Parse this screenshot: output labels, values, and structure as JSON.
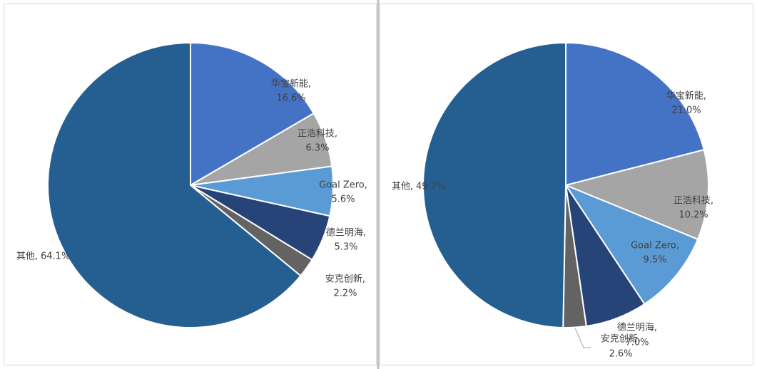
{
  "chart_data": [
    {
      "type": "pie",
      "categories": [
        "华宝新能,",
        "正浩科技,",
        "Goal Zero,",
        "德兰明海,",
        "安克创新,",
        "其他,"
      ],
      "values": [
        16.6,
        6.3,
        5.6,
        5.3,
        2.2,
        64.1
      ],
      "value_labels": [
        "16.6%",
        "6.3%",
        "5.6%",
        "5.3%",
        "2.2%",
        "64.1%"
      ],
      "colors": [
        "#4472c4",
        "#a5a5a5",
        "#5b9bd5",
        "#264478",
        "#636363",
        "#255e91"
      ]
    },
    {
      "type": "pie",
      "categories": [
        "华宝新能,",
        "正浩科技,",
        "Goal Zero,",
        "德兰明海,",
        "安克创新,",
        "其他,"
      ],
      "values": [
        21.0,
        10.2,
        9.5,
        7.0,
        2.6,
        49.7
      ],
      "value_labels": [
        "21.0%",
        "10.2%",
        "9.5%",
        "7.0%",
        "2.6%",
        "49.7%"
      ],
      "colors": [
        "#4472c4",
        "#a5a5a5",
        "#5b9bd5",
        "#264478",
        "#636363",
        "#255e91"
      ]
    }
  ]
}
